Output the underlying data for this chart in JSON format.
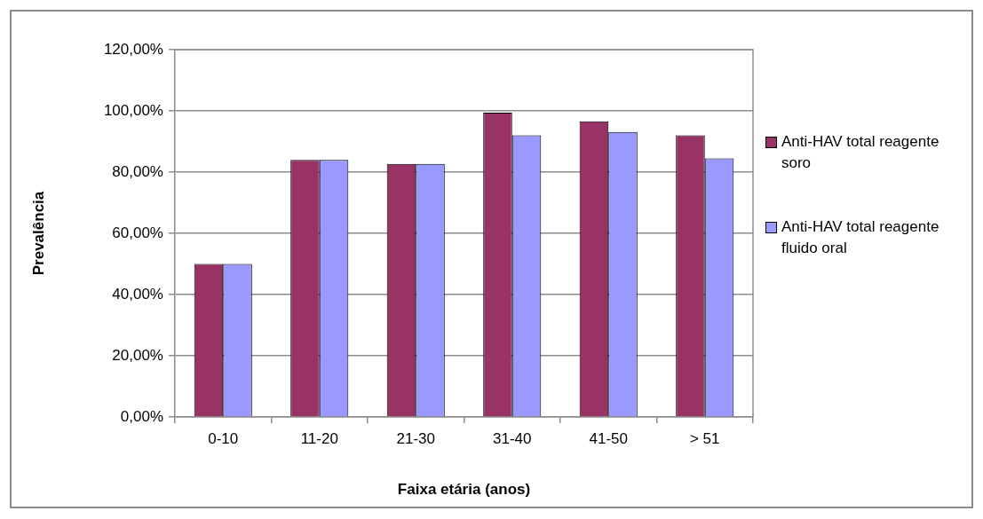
{
  "chart_data": {
    "type": "bar",
    "xlabel": "Faixa etária (anos)",
    "ylabel": "Prevalência",
    "categories": [
      "0-10",
      "11-20",
      "21-30",
      "31-40",
      "41-50",
      "> 51"
    ],
    "series": [
      {
        "name": "Anti-HAV total reagente soro",
        "color": "#993366",
        "values": [
          50,
          84,
          82.7,
          99.4,
          96.6,
          92
        ]
      },
      {
        "name": "Anti-HAV total reagente fluido oral",
        "color": "#9999ff",
        "values": [
          50,
          84,
          82.7,
          92,
          93.1,
          84.5
        ]
      }
    ],
    "ylim": [
      0,
      120
    ],
    "yticks": [
      {
        "value": 0,
        "label": "0,00%"
      },
      {
        "value": 20,
        "label": "20,00%"
      },
      {
        "value": 40,
        "label": "40,00%"
      },
      {
        "value": 60,
        "label": "60,00%"
      },
      {
        "value": 80,
        "label": "80,00%"
      },
      {
        "value": 100,
        "label": "100,00%"
      },
      {
        "value": 120,
        "label": "120,00%"
      }
    ],
    "grid": "y",
    "legend": "right"
  }
}
